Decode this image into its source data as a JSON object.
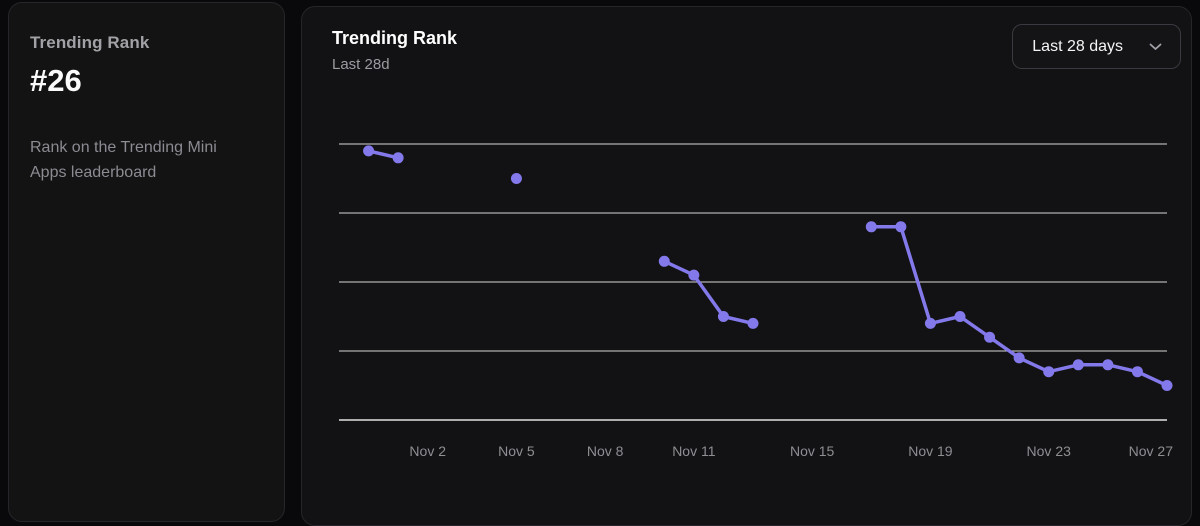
{
  "stat_card": {
    "title": "Trending Rank",
    "value": "#26",
    "description": "Rank on the Trending Mini Apps leaderboard"
  },
  "chart_panel": {
    "title": "Trending Rank",
    "subtitle": "Last 28d",
    "range_selector": {
      "value": "Last 28 days",
      "chevron_icon": "chevron-down"
    }
  },
  "colors": {
    "accent_line": "#8379ea",
    "gridline": "#d6d6d6",
    "axis_line": "#e2e2e2",
    "tick_label": "#8e8e93",
    "panel_background": "#121214",
    "page_background": "#09090b"
  },
  "chart_data": {
    "type": "line",
    "title": "Trending Rank",
    "subtitle": "Last 28d",
    "xlabel": "",
    "ylabel": "",
    "legend": "none",
    "grid": "horizontal",
    "y_inverted_rank_axis": true,
    "ylim": [
      0,
      40
    ],
    "gridline_values": [
      0,
      10,
      20,
      30
    ],
    "axis_value": 40,
    "x_domain_days": 28,
    "note": "rank values estimated from unlabeled gridlines; line breaks where days are missing",
    "points": [
      {
        "date": "Oct 31",
        "day": 0,
        "rank": 1
      },
      {
        "date": "Nov 1",
        "day": 1,
        "rank": 2
      },
      {
        "date": "Nov 5",
        "day": 5,
        "rank": 5
      },
      {
        "date": "Nov 10",
        "day": 10,
        "rank": 17
      },
      {
        "date": "Nov 11",
        "day": 11,
        "rank": 19
      },
      {
        "date": "Nov 12",
        "day": 12,
        "rank": 25
      },
      {
        "date": "Nov 13",
        "day": 13,
        "rank": 26
      },
      {
        "date": "Nov 17",
        "day": 17,
        "rank": 12
      },
      {
        "date": "Nov 18",
        "day": 18,
        "rank": 12
      },
      {
        "date": "Nov 19",
        "day": 19,
        "rank": 26
      },
      {
        "date": "Nov 20",
        "day": 20,
        "rank": 25
      },
      {
        "date": "Nov 21",
        "day": 21,
        "rank": 28
      },
      {
        "date": "Nov 22",
        "day": 22,
        "rank": 31
      },
      {
        "date": "Nov 23",
        "day": 23,
        "rank": 33
      },
      {
        "date": "Nov 24",
        "day": 24,
        "rank": 32
      },
      {
        "date": "Nov 25",
        "day": 25,
        "rank": 32
      },
      {
        "date": "Nov 26",
        "day": 26,
        "rank": 33
      },
      {
        "date": "Nov 27",
        "day": 27,
        "rank": 35
      }
    ],
    "x_ticks": [
      {
        "label": "Nov 2",
        "day": 2
      },
      {
        "label": "Nov 5",
        "day": 5
      },
      {
        "label": "Nov 8",
        "day": 8
      },
      {
        "label": "Nov 11",
        "day": 11
      },
      {
        "label": "Nov 15",
        "day": 15
      },
      {
        "label": "Nov 19",
        "day": 19
      },
      {
        "label": "Nov 23",
        "day": 23
      },
      {
        "label": "Nov 27",
        "day": 27
      }
    ]
  }
}
